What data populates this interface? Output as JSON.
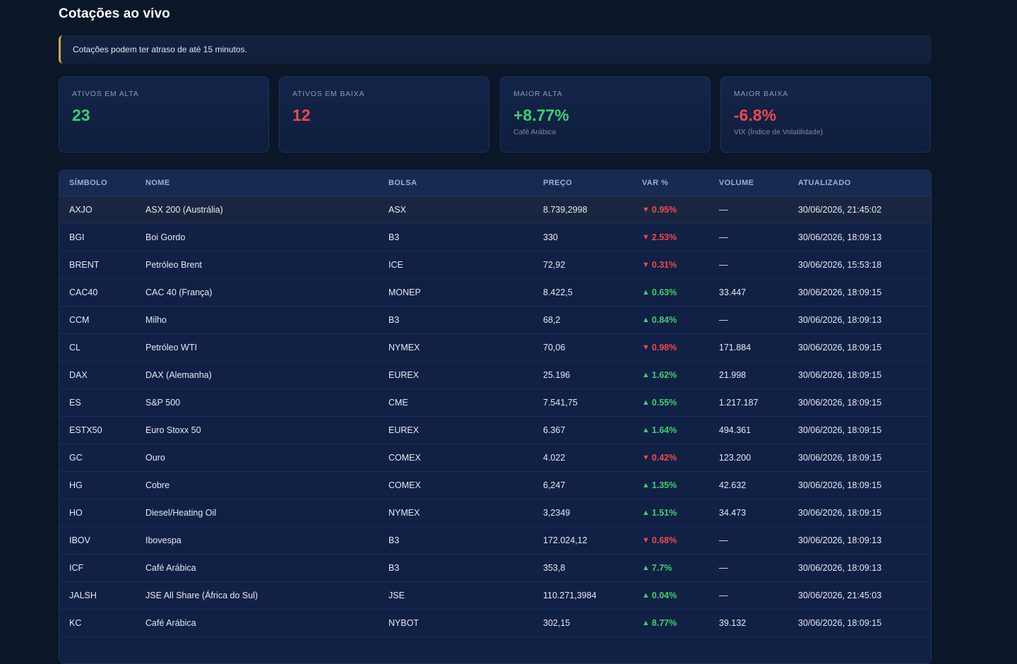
{
  "page": {
    "title": "Cotações ao vivo",
    "notice": "Cotações podem ter atraso de até 15 minutos."
  },
  "cards": [
    {
      "label": "ATIVOS EM ALTA",
      "value": "23",
      "sub": "",
      "tone": "green"
    },
    {
      "label": "ATIVOS EM BAIXA",
      "value": "12",
      "sub": "",
      "tone": "red"
    },
    {
      "label": "MAIOR ALTA",
      "value": "+8.77%",
      "sub": "Café Arábica",
      "tone": "green"
    },
    {
      "label": "MAIOR BAIXA",
      "value": "-6.8%",
      "sub": "VIX (Índice de Volatilidade)",
      "tone": "red"
    }
  ],
  "table": {
    "headers": {
      "symbol": "SÍMBOLO",
      "name": "NOME",
      "exchange": "BOLSA",
      "price": "PREÇO",
      "change": "VAR %",
      "volume": "VOLUME",
      "updated": "ATUALIZADO"
    },
    "rows": [
      {
        "symbol": "AXJO",
        "name": "ASX 200 (Austrália)",
        "exchange": "ASX",
        "price": "8.739,2998",
        "direction": "down",
        "change": "0.95%",
        "volume": "—",
        "updated": "30/06/2026, 21:45:02"
      },
      {
        "symbol": "BGI",
        "name": "Boi Gordo",
        "exchange": "B3",
        "price": "330",
        "direction": "down",
        "change": "2.53%",
        "volume": "—",
        "updated": "30/06/2026, 18:09:13"
      },
      {
        "symbol": "BRENT",
        "name": "Petróleo Brent",
        "exchange": "ICE",
        "price": "72,92",
        "direction": "down",
        "change": "0.31%",
        "volume": "—",
        "updated": "30/06/2026, 15:53:18"
      },
      {
        "symbol": "CAC40",
        "name": "CAC 40 (França)",
        "exchange": "MONEP",
        "price": "8.422,5",
        "direction": "up",
        "change": "0.63%",
        "volume": "33.447",
        "updated": "30/06/2026, 18:09:15"
      },
      {
        "symbol": "CCM",
        "name": "Milho",
        "exchange": "B3",
        "price": "68,2",
        "direction": "up",
        "change": "0.84%",
        "volume": "—",
        "updated": "30/06/2026, 18:09:13"
      },
      {
        "symbol": "CL",
        "name": "Petróleo WTI",
        "exchange": "NYMEX",
        "price": "70,06",
        "direction": "down",
        "change": "0.98%",
        "volume": "171.884",
        "updated": "30/06/2026, 18:09:15"
      },
      {
        "symbol": "DAX",
        "name": "DAX (Alemanha)",
        "exchange": "EUREX",
        "price": "25.196",
        "direction": "up",
        "change": "1.62%",
        "volume": "21.998",
        "updated": "30/06/2026, 18:09:15"
      },
      {
        "symbol": "ES",
        "name": "S&P 500",
        "exchange": "CME",
        "price": "7.541,75",
        "direction": "up",
        "change": "0.55%",
        "volume": "1.217.187",
        "updated": "30/06/2026, 18:09:15"
      },
      {
        "symbol": "ESTX50",
        "name": "Euro Stoxx 50",
        "exchange": "EUREX",
        "price": "6.367",
        "direction": "up",
        "change": "1.64%",
        "volume": "494.361",
        "updated": "30/06/2026, 18:09:15"
      },
      {
        "symbol": "GC",
        "name": "Ouro",
        "exchange": "COMEX",
        "price": "4.022",
        "direction": "down",
        "change": "0.42%",
        "volume": "123.200",
        "updated": "30/06/2026, 18:09:15"
      },
      {
        "symbol": "HG",
        "name": "Cobre",
        "exchange": "COMEX",
        "price": "6,247",
        "direction": "up",
        "change": "1.35%",
        "volume": "42.632",
        "updated": "30/06/2026, 18:09:15"
      },
      {
        "symbol": "HO",
        "name": "Diesel/Heating Oil",
        "exchange": "NYMEX",
        "price": "3,2349",
        "direction": "up",
        "change": "1.51%",
        "volume": "34.473",
        "updated": "30/06/2026, 18:09:15"
      },
      {
        "symbol": "IBOV",
        "name": "Ibovespa",
        "exchange": "B3",
        "price": "172.024,12",
        "direction": "down",
        "change": "0.68%",
        "volume": "—",
        "updated": "30/06/2026, 18:09:13"
      },
      {
        "symbol": "ICF",
        "name": "Café Arábica",
        "exchange": "B3",
        "price": "353,8",
        "direction": "up",
        "change": "7.7%",
        "volume": "—",
        "updated": "30/06/2026, 18:09:13"
      },
      {
        "symbol": "JALSH",
        "name": "JSE All Share (África do Sul)",
        "exchange": "JSE",
        "price": "110.271,3984",
        "direction": "up",
        "change": "0.04%",
        "volume": "—",
        "updated": "30/06/2026, 21:45:03"
      },
      {
        "symbol": "KC",
        "name": "Café Arábica",
        "exchange": "NYBOT",
        "price": "302,15",
        "direction": "up",
        "change": "8.77%",
        "volume": "39.132",
        "updated": "30/06/2026, 18:09:15"
      }
    ]
  },
  "colors": {
    "up": "#3ecf6e",
    "down": "#f0484d",
    "accent": "#d4a93a"
  },
  "icons": {
    "up": "triangle-up-icon",
    "down": "triangle-down-icon"
  }
}
